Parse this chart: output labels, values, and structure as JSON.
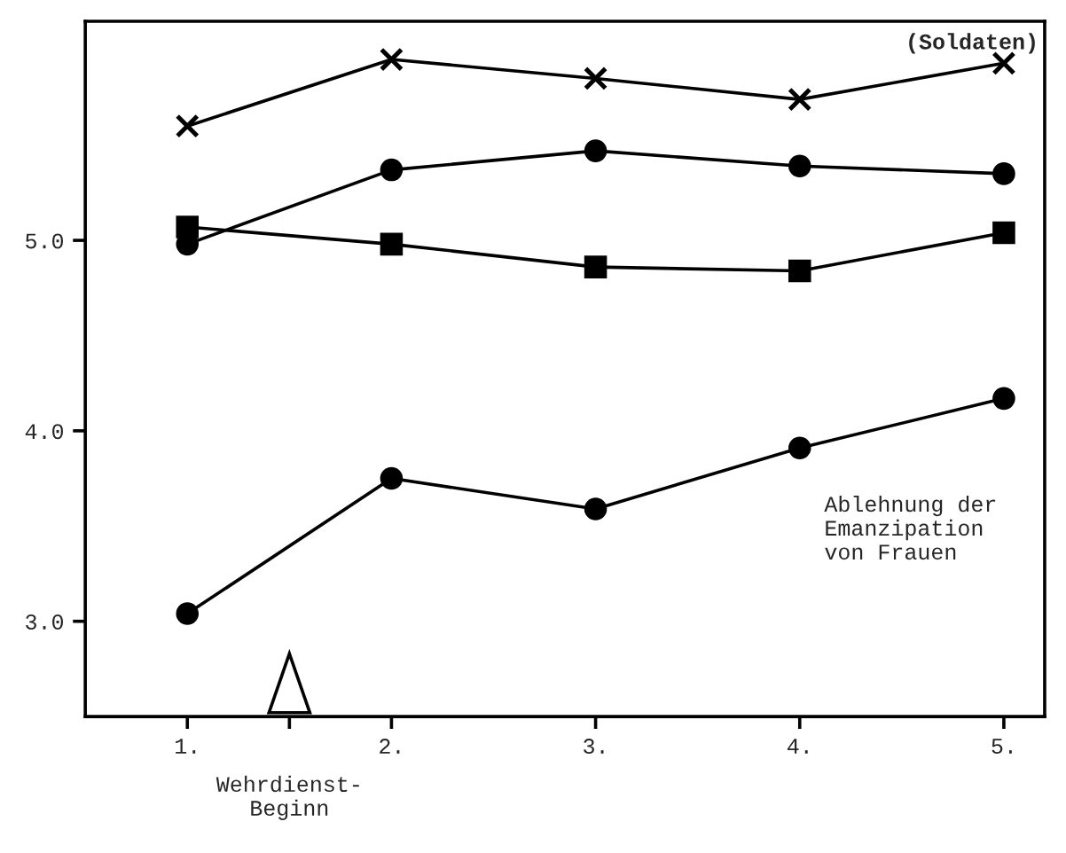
{
  "chart_data": {
    "type": "line",
    "x": [
      1,
      2,
      3,
      4,
      5
    ],
    "series": [
      {
        "name": "(Soldaten)",
        "color": "#000000",
        "marker": "cross",
        "values": [
          5.6,
          5.95,
          5.85,
          5.74,
          5.93
        ]
      },
      {
        "color": "#000000",
        "marker": "circle",
        "values": [
          4.98,
          5.37,
          5.47,
          5.39,
          5.35
        ]
      },
      {
        "color": "#000000",
        "marker": "square",
        "values": [
          5.07,
          4.98,
          4.86,
          4.84,
          5.04
        ]
      },
      {
        "name": "Ablehnung der\nEmanzipation\nvon Frauen",
        "color": "#000000",
        "marker": "circle",
        "values": [
          3.04,
          3.75,
          3.59,
          3.91,
          4.17
        ]
      }
    ],
    "xlim": [
      0.5,
      5.2
    ],
    "xticks": [
      {
        "value": 1,
        "label": "1."
      },
      {
        "value": 1.5,
        "label": null
      },
      {
        "value": 2,
        "label": "2."
      },
      {
        "value": 3,
        "label": "3."
      },
      {
        "value": 4,
        "label": "4."
      },
      {
        "value": 5,
        "label": "5."
      }
    ],
    "ylim": [
      2.5,
      6.15
    ],
    "yticks": [
      {
        "value": 3,
        "label": "3.0"
      },
      {
        "value": 4,
        "label": "4.0"
      },
      {
        "value": 5,
        "label": "5.0"
      }
    ],
    "annotations": [
      "Wehrdienst-\nBeginn"
    ],
    "line_style": "solid",
    "grid": false,
    "legend": false
  }
}
